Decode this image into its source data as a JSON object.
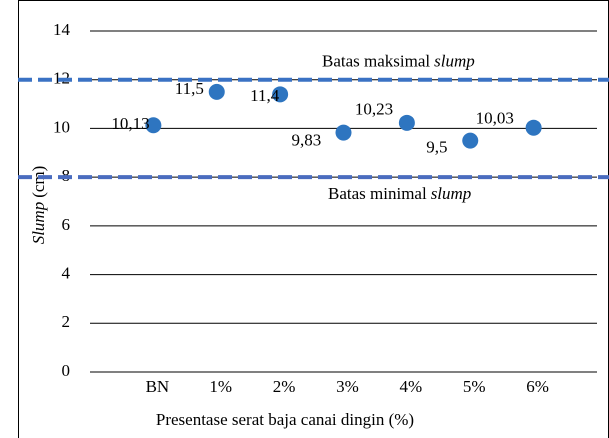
{
  "chart_data": {
    "type": "scatter",
    "categories": [
      "BN",
      "1%",
      "2%",
      "3%",
      "4%",
      "5%",
      "6%"
    ],
    "values": [
      10.13,
      11.5,
      11.4,
      9.83,
      10.23,
      9.5,
      10.03
    ],
    "value_labels": [
      "10,13",
      "11,5",
      "11,4",
      "9,83",
      "10,23",
      "9,5",
      "10,03"
    ],
    "color": "#2e75c0",
    "ylim": [
      0,
      14
    ],
    "yticks": [
      0,
      2,
      4,
      6,
      8,
      10,
      12,
      14
    ],
    "grid": true,
    "y_label": {
      "emph": "Slump",
      "text": "(cm)"
    },
    "x_label": "Presentase serat baja canai dingin  (%)",
    "reference_lines": [
      {
        "value": 12,
        "text": "Batas maksimal",
        "emph": "slump",
        "color": "#3a72c4"
      },
      {
        "value": 8,
        "text": "Batas minimal",
        "emph": "slump",
        "color": "#4a6cbf"
      }
    ]
  }
}
